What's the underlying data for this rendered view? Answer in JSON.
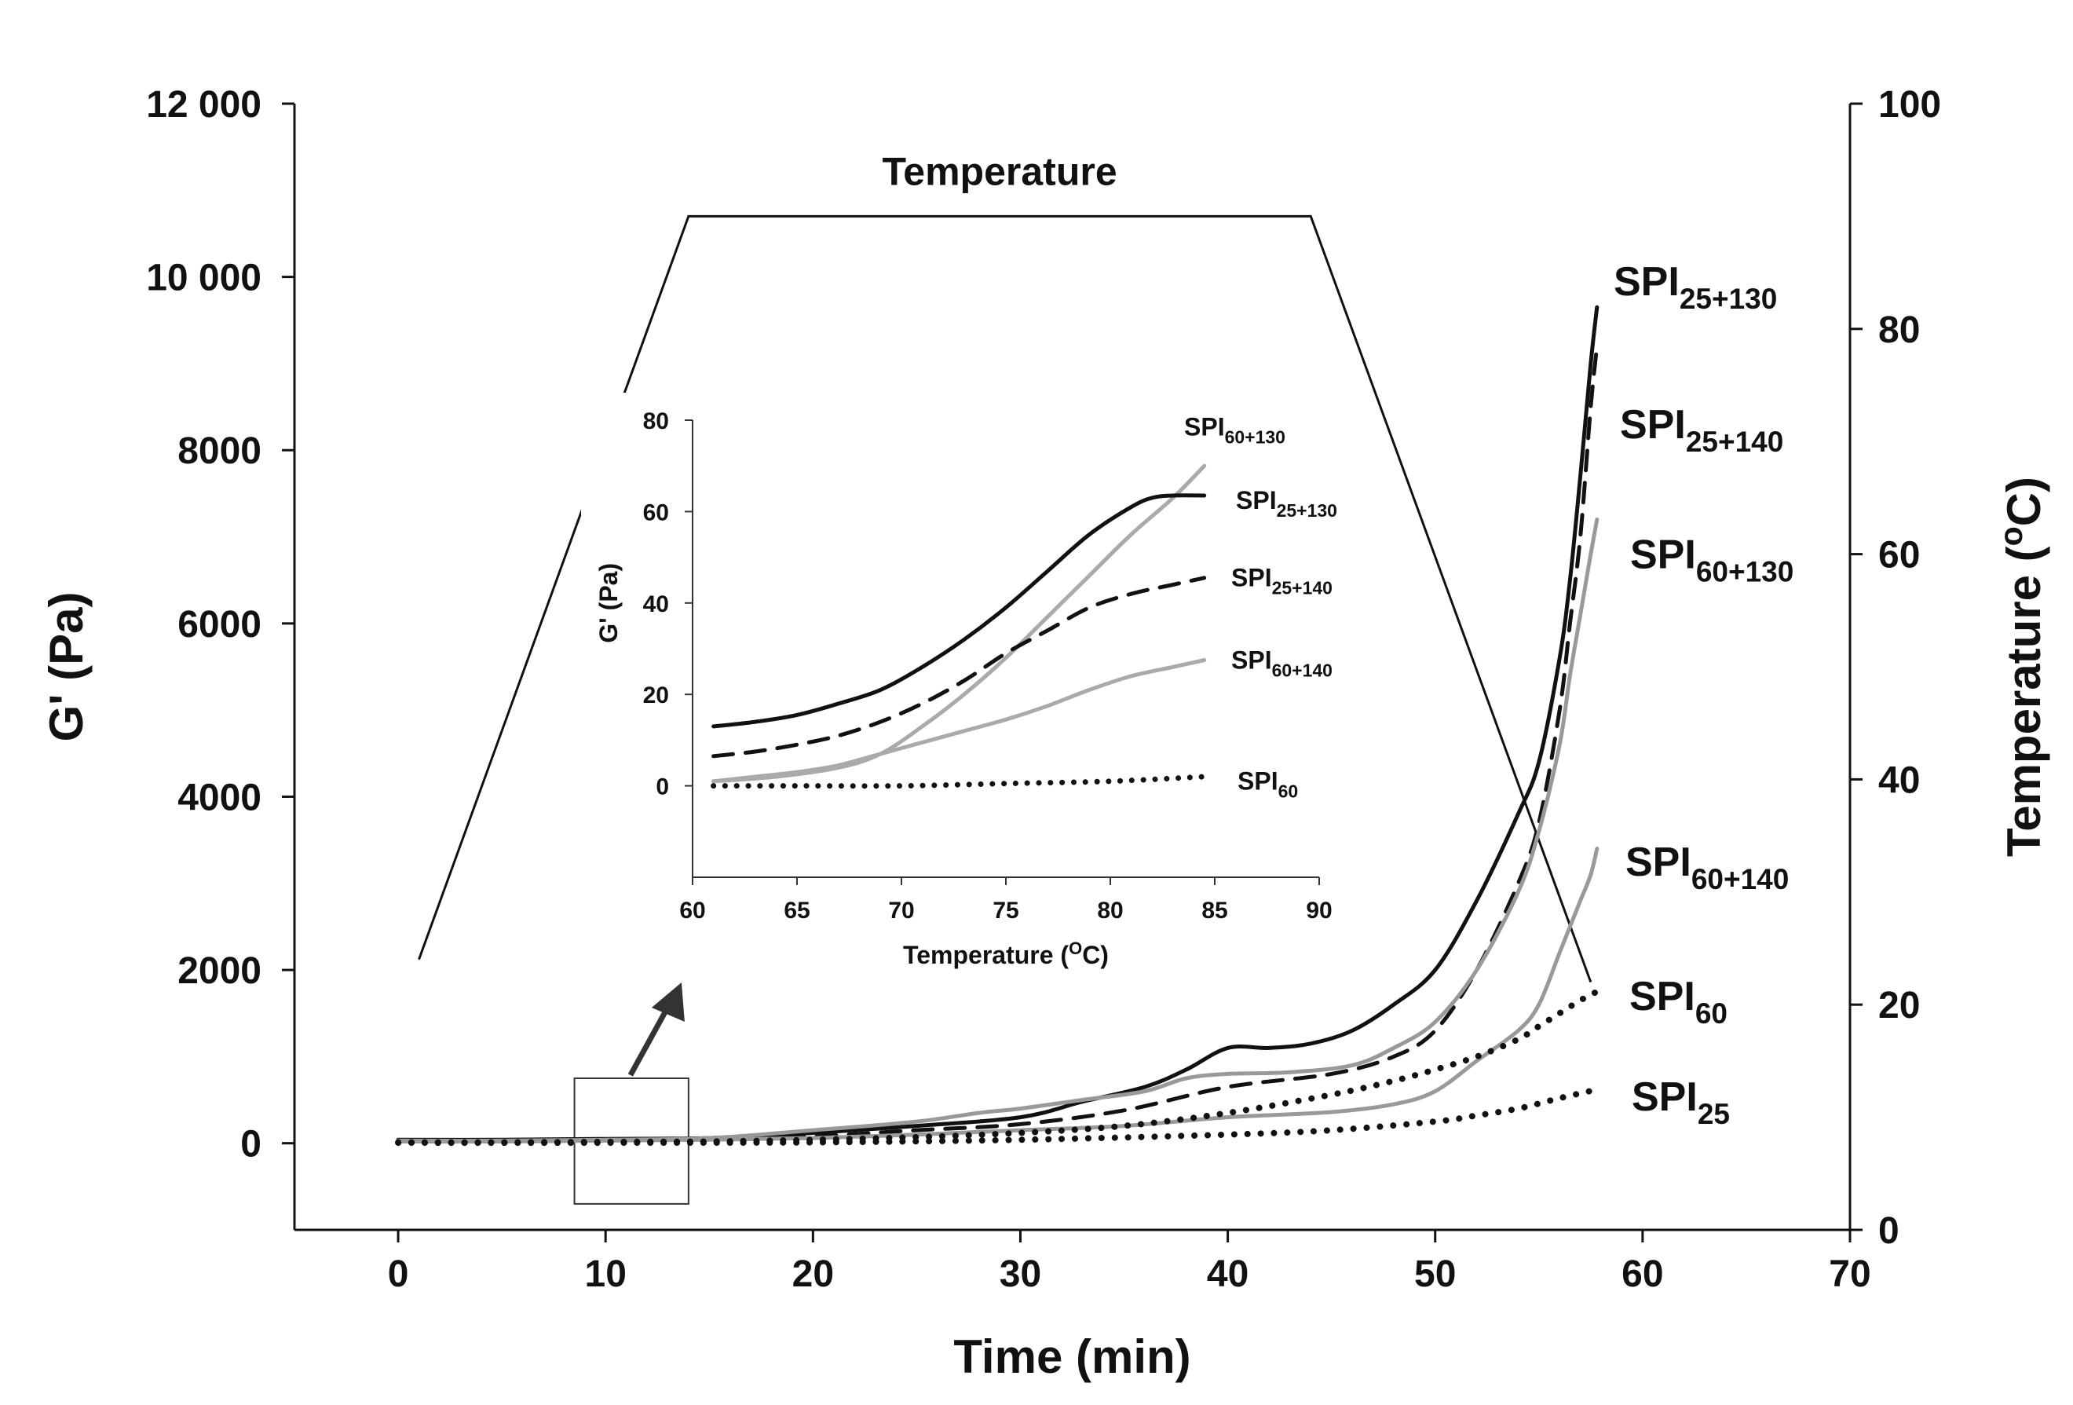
{
  "chart_data": [
    {
      "id": "main",
      "type": "line",
      "title": "",
      "xlabel": "Time (min)",
      "ylabel": "G' (Pa)",
      "y2label": "Temperature (°C)",
      "y2label_parts": {
        "pre": "Temperature (",
        "sup": "o",
        "post": "C)"
      },
      "xlim": [
        -5,
        70
      ],
      "ylim": [
        -1000,
        12000
      ],
      "y2lim": [
        0,
        100
      ],
      "xticks": [
        0,
        10,
        20,
        30,
        40,
        50,
        60,
        70
      ],
      "yticks": [
        0,
        2000,
        4000,
        6000,
        8000,
        10000,
        12000
      ],
      "ytick_labels": [
        "0",
        "2000",
        "4000",
        "6000",
        "8000",
        "10 000",
        "12 000"
      ],
      "y2ticks": [
        0,
        20,
        40,
        60,
        80,
        100
      ],
      "grid": false,
      "temperature": {
        "label": "Temperature",
        "x": [
          1,
          14,
          15,
          44,
          57.5
        ],
        "y": [
          24,
          90,
          90,
          90,
          22
        ]
      },
      "zoom_box": {
        "x": [
          8.5,
          14
        ],
        "y": [
          -700,
          750
        ]
      },
      "series": [
        {
          "name": "SPI25+130",
          "label_base": "SPI",
          "label_sub": "25+130",
          "style": "solid",
          "color": "#111111",
          "x": [
            0,
            5,
            10,
            15,
            20,
            25,
            30,
            33,
            36,
            38,
            40,
            42,
            44,
            46,
            48,
            50,
            52,
            54,
            55,
            56,
            56.5,
            57,
            57.5,
            57.8
          ],
          "y": [
            40,
            40,
            50,
            60,
            120,
            200,
            300,
            480,
            650,
            850,
            1100,
            1100,
            1150,
            1300,
            1600,
            2000,
            2800,
            3800,
            4400,
            5600,
            6500,
            7700,
            9000,
            9650
          ]
        },
        {
          "name": "SPI25+140",
          "label_base": "SPI",
          "label_sub": "25+140",
          "style": "dashed",
          "color": "#111111",
          "x": [
            0,
            5,
            10,
            15,
            20,
            25,
            30,
            35,
            40,
            45,
            48,
            50,
            52,
            54,
            55,
            56,
            56.5,
            57,
            57.5,
            57.8
          ],
          "y": [
            30,
            30,
            40,
            50,
            80,
            150,
            220,
            380,
            650,
            800,
            1000,
            1300,
            2000,
            3000,
            3700,
            5000,
            6000,
            7000,
            8500,
            9200
          ]
        },
        {
          "name": "SPI60+130",
          "label_base": "SPI",
          "label_sub": "60+130",
          "style": "solid",
          "color": "#999999",
          "x": [
            0,
            5,
            10,
            15,
            20,
            25,
            28,
            30,
            33,
            36,
            38,
            40,
            43,
            46,
            48,
            50,
            52,
            54,
            55,
            56,
            56.5,
            57,
            57.5,
            57.8
          ],
          "y": [
            30,
            30,
            40,
            60,
            150,
            250,
            350,
            400,
            500,
            600,
            750,
            800,
            820,
            900,
            1100,
            1400,
            2000,
            2900,
            3600,
            4600,
            5400,
            6100,
            6800,
            7200
          ]
        },
        {
          "name": "SPI60+140",
          "label_base": "SPI",
          "label_sub": "60+140",
          "style": "solid",
          "color": "#999999",
          "x": [
            0,
            5,
            10,
            15,
            20,
            25,
            30,
            35,
            40,
            45,
            48,
            50,
            52,
            54,
            55,
            56,
            56.5,
            57,
            57.5,
            57.8
          ],
          "y": [
            20,
            20,
            30,
            40,
            60,
            100,
            150,
            200,
            300,
            360,
            450,
            600,
            950,
            1300,
            1600,
            2200,
            2500,
            2800,
            3100,
            3400
          ]
        },
        {
          "name": "SPI60",
          "label_base": "SPI",
          "label_sub": "60",
          "style": "dotted",
          "color": "#111111",
          "x": [
            0,
            5,
            10,
            15,
            20,
            25,
            30,
            35,
            40,
            45,
            48,
            50,
            52,
            54,
            55,
            56,
            57,
            57.8
          ],
          "y": [
            10,
            10,
            15,
            20,
            40,
            70,
            120,
            200,
            350,
            560,
            720,
            850,
            1000,
            1200,
            1350,
            1500,
            1650,
            1750
          ]
        },
        {
          "name": "SPI25",
          "label_base": "SPI",
          "label_sub": "25",
          "style": "dotted",
          "color": "#111111",
          "x": [
            0,
            10,
            20,
            30,
            40,
            45,
            50,
            52,
            54,
            56,
            57.8
          ],
          "y": [
            5,
            5,
            10,
            40,
            100,
            150,
            250,
            320,
            400,
            520,
            620
          ]
        }
      ]
    },
    {
      "id": "inset",
      "type": "line",
      "title": "",
      "xlabel": "Temperature (°C)",
      "xlabel_parts": {
        "pre": "Temperature (",
        "sup": "O",
        "post": "C)"
      },
      "ylabel": "G' (Pa)",
      "xlim": [
        60,
        90
      ],
      "ylim": [
        -20,
        80
      ],
      "xticks": [
        60,
        65,
        70,
        75,
        80,
        85,
        90
      ],
      "yticks": [
        0,
        20,
        40,
        60,
        80
      ],
      "grid": false,
      "series": [
        {
          "name": "SPI60+130",
          "label_base": "SPI",
          "label_sub": "60+130",
          "style": "solid",
          "color": "#aaaaaa",
          "x": [
            61,
            64,
            67,
            69,
            71,
            73,
            75,
            77,
            79,
            81,
            83,
            84.5
          ],
          "y": [
            1,
            2,
            4,
            7,
            13,
            20,
            28,
            37,
            46,
            55,
            63,
            70
          ]
        },
        {
          "name": "SPI25+130",
          "label_base": "SPI",
          "label_sub": "25+130",
          "style": "solid",
          "color": "#111111",
          "x": [
            61,
            63,
            65,
            67,
            69,
            71,
            73,
            75,
            77,
            79,
            81,
            82,
            83,
            84.5
          ],
          "y": [
            13,
            14,
            15.5,
            18,
            21,
            26,
            32,
            39,
            47,
            55,
            61,
            63,
            63.5,
            63.5
          ]
        },
        {
          "name": "SPI25+140",
          "label_base": "SPI",
          "label_sub": "25+140",
          "style": "dashed",
          "color": "#111111",
          "x": [
            61,
            63,
            65,
            67,
            69,
            71,
            73,
            75,
            77,
            79,
            81,
            83,
            84.5
          ],
          "y": [
            6.5,
            7.5,
            9,
            11,
            14,
            18,
            23,
            29,
            34,
            39,
            42,
            44,
            45.5
          ]
        },
        {
          "name": "SPI60+140",
          "label_base": "SPI",
          "label_sub": "60+140",
          "style": "solid",
          "color": "#aaaaaa",
          "x": [
            61,
            63,
            65,
            67,
            69,
            71,
            73,
            75,
            77,
            79,
            81,
            83,
            84.5
          ],
          "y": [
            1,
            2,
            3,
            4.5,
            7,
            9.5,
            12,
            14.5,
            17.5,
            21,
            24,
            26,
            27.5
          ]
        },
        {
          "name": "SPI60",
          "label_base": "SPI",
          "label_sub": "60",
          "style": "dotted",
          "color": "#111111",
          "x": [
            61,
            65,
            70,
            75,
            80,
            84.5
          ],
          "y": [
            0,
            0,
            0,
            0.5,
            1,
            2
          ]
        }
      ]
    }
  ]
}
